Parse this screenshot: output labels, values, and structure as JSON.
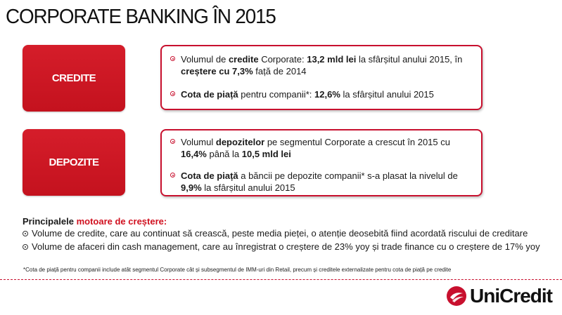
{
  "title": "CORPORATE BANKING ÎN 2015",
  "credite": {
    "label": "CREDITE",
    "b1": {
      "p1": "Volumul de ",
      "p2": "credite",
      "p3": " Corporate: ",
      "p4": "13,2 mld lei",
      "p5": " la sfârșitul anului 2015, în",
      "p6": "creștere cu 7,3%",
      "p7": " față de 2014"
    },
    "b2": {
      "p1": "Cota de piață",
      "p2": " pentru companii*: ",
      "p3": "12,6%",
      "p4": " la sfârșitul anului 2015"
    }
  },
  "depozite": {
    "label": "DEPOZITE",
    "b1": {
      "p1": "Volumul ",
      "p2": "depozitelor",
      "p3": " pe segmentul Corporate a crescut în 2015 cu",
      "p4": "16,4%",
      "p5": " până la ",
      "p6": "10,5 mld lei"
    },
    "b2": {
      "p1": "Cota de piață",
      "p2": " a băncii pe depozite companii* s-a plasat la nivelul de",
      "p3": "9,9%",
      "p4": " la sfârșitul anului 2015"
    }
  },
  "drivers": {
    "title_p1": "Principalele ",
    "title_p2": "motoare de creștere:",
    "items": [
      "Volume de credite, care au continuat să crească, peste media pieței, o atenție deosebită fiind acordată riscului de creditare",
      "Volume de afaceri din cash management, care au înregistrat o creștere de 23% yoy și trade finance cu o creștere de 17% yoy"
    ]
  },
  "footnote": "*Cota de piață pentru companii include atât segmentul Corporate cât și subsegmentul de IMM-uri din Retail, precum și creditele externalizate pentru cota de piață pe credite",
  "logo": {
    "text": "UniCredit",
    "icon": "unicredit-logo-icon",
    "color": "#c8102e"
  }
}
